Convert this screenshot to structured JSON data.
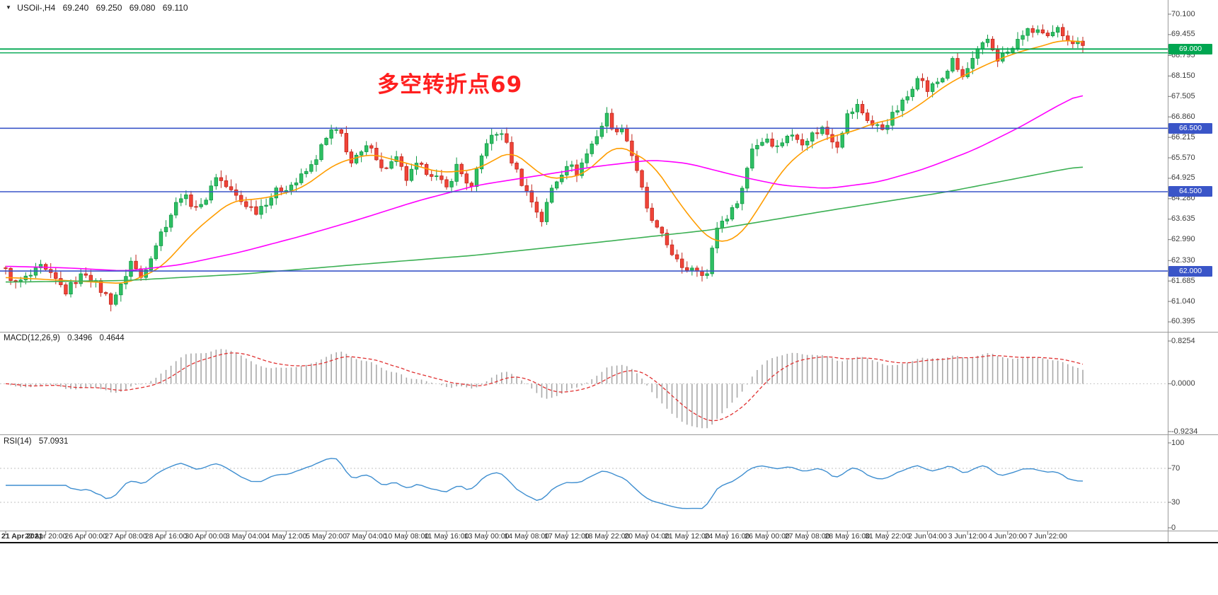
{
  "main_header": {
    "collapse_icon": "▼",
    "symbol_period": "USOil-,H4",
    "open": "69.240",
    "high": "69.250",
    "low": "69.080",
    "close": "69.110"
  },
  "annotation": {
    "text": "多空转折点69",
    "color": "#ff1f1f"
  },
  "macd_panel": {
    "label": "MACD(12,26,9)",
    "main_value": "0.3496",
    "signal_value": "0.4644",
    "axis_labels": [
      "0.8254",
      "0.0000",
      "-0.9234"
    ]
  },
  "rsi_panel": {
    "label": "RSI(14)",
    "value": "57.0931",
    "axis_labels": [
      "100",
      "70",
      "30",
      "0"
    ]
  },
  "price_axis": {
    "labels": [
      "70.100",
      "69.455",
      "68.795",
      "68.150",
      "67.505",
      "66.860",
      "66.215",
      "65.570",
      "64.925",
      "64.280",
      "63.635",
      "62.990",
      "62.330",
      "61.685",
      "61.040",
      "60.395"
    ]
  },
  "time_axis": {
    "labels": [
      "21 Apr 2021",
      "22 Apr 20:00",
      "26 Apr 00:00",
      "27 Apr 08:00",
      "28 Apr 16:00",
      "30 Apr 00:00",
      "3 May 04:00",
      "4 May 12:00",
      "5 May 20:00",
      "7 May 04:00",
      "10 May 08:00",
      "11 May 16:00",
      "13 May 00:00",
      "14 May 08:00",
      "17 May 12:00",
      "18 May 22:00",
      "20 May 04:00",
      "21 May 12:00",
      "24 May 16:00",
      "26 May 00:00",
      "27 May 08:00",
      "28 May 16:00",
      "31 May 22:00",
      "2 Jun 04:00",
      "3 Jun 12:00",
      "4 Jun 20:00",
      "7 Jun 22:00"
    ]
  },
  "chart_data": {
    "type": "candlestick",
    "title": "USOil-,H4",
    "symbol": "USOil",
    "timeframe": "H4",
    "bars": 216,
    "ylim": [
      60.395,
      70.1
    ],
    "current_ohlc": {
      "open": 69.24,
      "high": 69.25,
      "low": 69.08,
      "close": 69.11
    },
    "candles": {
      "up_fill": "#2ebf63",
      "up_stroke": "#119a46",
      "down_fill": "#f04438",
      "down_stroke": "#c2271d"
    },
    "price_waypoints": [
      [
        0,
        62.0
      ],
      [
        2,
        61.6
      ],
      [
        5,
        61.85
      ],
      [
        7,
        62.1
      ],
      [
        10,
        61.7
      ],
      [
        12,
        61.35
      ],
      [
        14,
        61.7
      ],
      [
        16,
        61.95
      ],
      [
        19,
        61.4
      ],
      [
        21,
        61.05
      ],
      [
        23,
        61.5
      ],
      [
        25,
        62.3
      ],
      [
        27,
        61.8
      ],
      [
        29,
        62.5
      ],
      [
        31,
        63.2
      ],
      [
        33,
        63.8
      ],
      [
        35,
        64.4
      ],
      [
        37,
        64.15
      ],
      [
        39,
        64.0
      ],
      [
        42,
        65.0
      ],
      [
        45,
        64.5
      ],
      [
        47,
        64.2
      ],
      [
        50,
        63.9
      ],
      [
        54,
        64.5
      ],
      [
        58,
        64.8
      ],
      [
        61,
        65.3
      ],
      [
        63,
        65.9
      ],
      [
        65,
        66.4
      ],
      [
        67,
        66.3
      ],
      [
        69,
        65.4
      ],
      [
        71,
        65.7
      ],
      [
        73,
        66.0
      ],
      [
        75,
        65.2
      ],
      [
        78,
        65.5
      ],
      [
        80,
        64.9
      ],
      [
        82,
        65.3
      ],
      [
        85,
        65.1
      ],
      [
        88,
        64.6
      ],
      [
        90,
        65.3
      ],
      [
        93,
        64.6
      ],
      [
        96,
        66.1
      ],
      [
        99,
        66.4
      ],
      [
        101,
        65.5
      ],
      [
        103,
        64.8
      ],
      [
        105,
        64.2
      ],
      [
        107,
        63.6
      ],
      [
        109,
        64.6
      ],
      [
        112,
        65.4
      ],
      [
        114,
        65.1
      ],
      [
        116,
        65.7
      ],
      [
        118,
        66.3
      ],
      [
        120,
        66.9
      ],
      [
        122,
        66.3
      ],
      [
        123,
        66.6
      ],
      [
        126,
        65.2
      ],
      [
        128,
        63.9
      ],
      [
        130,
        63.3
      ],
      [
        133,
        62.6
      ],
      [
        135,
        62.0
      ],
      [
        137,
        62.15
      ],
      [
        140,
        61.9
      ],
      [
        142,
        63.4
      ],
      [
        145,
        63.9
      ],
      [
        147,
        64.6
      ],
      [
        149,
        65.9
      ],
      [
        152,
        66.2
      ],
      [
        154,
        65.9
      ],
      [
        156,
        66.3
      ],
      [
        159,
        66.1
      ],
      [
        161,
        66.3
      ],
      [
        163,
        66.5
      ],
      [
        166,
        66.0
      ],
      [
        168,
        66.9
      ],
      [
        170,
        67.2
      ],
      [
        173,
        66.6
      ],
      [
        175,
        66.5
      ],
      [
        177,
        66.9
      ],
      [
        180,
        67.5
      ],
      [
        182,
        68.2
      ],
      [
        184,
        67.7
      ],
      [
        187,
        68.1
      ],
      [
        189,
        68.6
      ],
      [
        191,
        68.1
      ],
      [
        194,
        68.9
      ],
      [
        196,
        69.3
      ],
      [
        198,
        68.7
      ],
      [
        201,
        69.0
      ],
      [
        203,
        69.5
      ],
      [
        206,
        69.6
      ],
      [
        208,
        69.3
      ],
      [
        210,
        69.6
      ],
      [
        213,
        69.25
      ],
      [
        215,
        69.11
      ]
    ],
    "hlines": [
      {
        "price": 69.0,
        "color": "#00a651",
        "width": 1.8,
        "badge": "69.000"
      },
      {
        "price": 68.88,
        "color": "#00a651",
        "width": 1.4,
        "badge": null
      },
      {
        "price": 66.5,
        "color": "#3a55c8",
        "width": 1.6,
        "badge": "66.500"
      },
      {
        "price": 64.5,
        "color": "#3a55c8",
        "width": 1.6,
        "badge": "64.500"
      },
      {
        "price": 62.0,
        "color": "#3a55c8",
        "width": 1.6,
        "badge": "62.000"
      }
    ],
    "moving_averages": [
      {
        "name": "ma-fast-orange",
        "color": "#ff9d00",
        "width": 1.6,
        "points": [
          [
            0,
            61.8
          ],
          [
            12,
            61.7
          ],
          [
            24,
            61.6
          ],
          [
            31,
            62.1
          ],
          [
            38,
            63.3
          ],
          [
            45,
            64.2
          ],
          [
            52,
            64.3
          ],
          [
            59,
            64.6
          ],
          [
            66,
            65.4
          ],
          [
            73,
            65.7
          ],
          [
            80,
            65.4
          ],
          [
            87,
            65.1
          ],
          [
            94,
            65.2
          ],
          [
            101,
            65.8
          ],
          [
            108,
            64.9
          ],
          [
            115,
            65.0
          ],
          [
            122,
            66.0
          ],
          [
            129,
            65.4
          ],
          [
            136,
            63.8
          ],
          [
            141,
            62.9
          ],
          [
            146,
            63.0
          ],
          [
            150,
            63.9
          ],
          [
            155,
            65.2
          ],
          [
            160,
            65.9
          ],
          [
            164,
            66.2
          ],
          [
            169,
            66.4
          ],
          [
            174,
            66.7
          ],
          [
            178,
            66.8
          ],
          [
            183,
            67.3
          ],
          [
            188,
            67.9
          ],
          [
            193,
            68.3
          ],
          [
            197,
            68.6
          ],
          [
            202,
            68.9
          ],
          [
            207,
            69.1
          ],
          [
            211,
            69.3
          ],
          [
            215,
            69.2
          ]
        ]
      },
      {
        "name": "ma-mid-magenta",
        "color": "#ff00ff",
        "width": 1.6,
        "points": [
          [
            0,
            62.15
          ],
          [
            12,
            62.1
          ],
          [
            24,
            62.0
          ],
          [
            35,
            62.2
          ],
          [
            47,
            62.6
          ],
          [
            59,
            63.1
          ],
          [
            70,
            63.6
          ],
          [
            82,
            64.2
          ],
          [
            94,
            64.7
          ],
          [
            106,
            65.0
          ],
          [
            118,
            65.3
          ],
          [
            129,
            65.5
          ],
          [
            136,
            65.4
          ],
          [
            146,
            65.0
          ],
          [
            155,
            64.7
          ],
          [
            164,
            64.6
          ],
          [
            174,
            64.8
          ],
          [
            183,
            65.2
          ],
          [
            193,
            65.8
          ],
          [
            202,
            66.5
          ],
          [
            211,
            67.3
          ],
          [
            215,
            67.6
          ]
        ]
      },
      {
        "name": "ma-slow-green",
        "color": "#3cb054",
        "width": 1.6,
        "points": [
          [
            0,
            61.65
          ],
          [
            24,
            61.7
          ],
          [
            47,
            61.9
          ],
          [
            70,
            62.2
          ],
          [
            94,
            62.5
          ],
          [
            118,
            62.9
          ],
          [
            141,
            63.3
          ],
          [
            164,
            63.9
          ],
          [
            188,
            64.5
          ],
          [
            211,
            65.2
          ],
          [
            215,
            65.3
          ]
        ]
      }
    ],
    "macd": {
      "params": [
        12,
        26,
        9
      ],
      "current_main": 0.3496,
      "current_signal": 0.4644,
      "range": [
        -0.9234,
        0.8254
      ],
      "histogram_color": "#a9a9a9",
      "signal_color": "#e03131"
    },
    "rsi": {
      "period": 14,
      "current": 57.0931,
      "range": [
        0,
        100
      ],
      "levels": [
        30,
        70
      ],
      "line_color": "#3e8ed0"
    }
  }
}
